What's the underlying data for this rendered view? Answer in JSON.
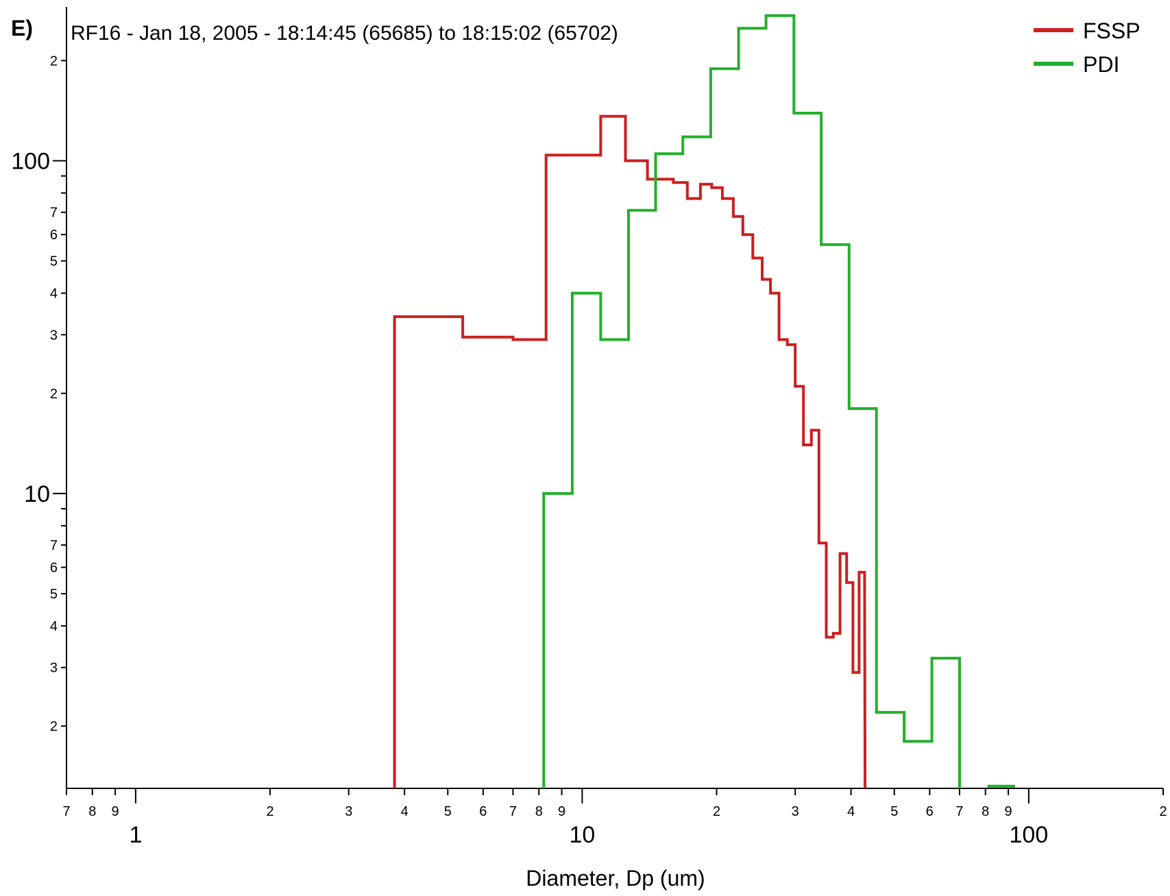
{
  "chart_data": {
    "type": "line",
    "step": true,
    "panel_label": "E)",
    "title": "RF16 - Jan 18, 2005 - 18:14:45 (65685) to 18:15:02 (65702)",
    "xlabel": "Diameter, Dp (um)",
    "ylabel": "",
    "x_scale": "log",
    "y_scale": "log",
    "xlim": [
      0.7,
      200
    ],
    "ylim": [
      1.3,
      290
    ],
    "x_major_ticks": [
      {
        "value": 1,
        "label": "1"
      },
      {
        "value": 10,
        "label": "10"
      },
      {
        "value": 100,
        "label": "100"
      }
    ],
    "x_minor_ticks": [
      {
        "value": 0.7,
        "label": "7"
      },
      {
        "value": 0.8,
        "label": "8"
      },
      {
        "value": 0.9,
        "label": "9"
      },
      {
        "value": 2,
        "label": "2"
      },
      {
        "value": 3,
        "label": "3"
      },
      {
        "value": 4,
        "label": "4"
      },
      {
        "value": 5,
        "label": "5"
      },
      {
        "value": 6,
        "label": "6"
      },
      {
        "value": 7,
        "label": "7"
      },
      {
        "value": 8,
        "label": "8"
      },
      {
        "value": 9,
        "label": "9"
      },
      {
        "value": 20,
        "label": "2"
      },
      {
        "value": 30,
        "label": "3"
      },
      {
        "value": 40,
        "label": "4"
      },
      {
        "value": 50,
        "label": "5"
      },
      {
        "value": 60,
        "label": "6"
      },
      {
        "value": 70,
        "label": "7"
      },
      {
        "value": 80,
        "label": "8"
      },
      {
        "value": 90,
        "label": "9"
      },
      {
        "value": 200,
        "label": "2"
      }
    ],
    "y_major_ticks": [
      {
        "value": 10,
        "label": "10"
      },
      {
        "value": 100,
        "label": "100"
      }
    ],
    "y_minor_ticks": [
      {
        "value": 2,
        "label": "2"
      },
      {
        "value": 3,
        "label": "3"
      },
      {
        "value": 4,
        "label": "4"
      },
      {
        "value": 5,
        "label": "5"
      },
      {
        "value": 6,
        "label": "6"
      },
      {
        "value": 7,
        "label": "7"
      },
      {
        "value": 8,
        "label": ""
      },
      {
        "value": 9,
        "label": ""
      },
      {
        "value": 20,
        "label": "2"
      },
      {
        "value": 30,
        "label": "3"
      },
      {
        "value": 40,
        "label": "4"
      },
      {
        "value": 50,
        "label": "5"
      },
      {
        "value": 60,
        "label": "6"
      },
      {
        "value": 70,
        "label": "7"
      },
      {
        "value": 80,
        "label": ""
      },
      {
        "value": 90,
        "label": ""
      },
      {
        "value": 200,
        "label": "2"
      }
    ],
    "grid": false,
    "legend_position": "top-right",
    "series": [
      {
        "name": "FSSP",
        "color": "#cc1f1f",
        "bins": [
          {
            "x0": 3.8,
            "x1": 5.4,
            "y": 34
          },
          {
            "x0": 5.4,
            "x1": 7.0,
            "y": 29.5
          },
          {
            "x0": 7.0,
            "x1": 8.3,
            "y": 29
          },
          {
            "x0": 8.3,
            "x1": 9.6,
            "y": 104
          },
          {
            "x0": 9.6,
            "x1": 11.0,
            "y": 104
          },
          {
            "x0": 11.0,
            "x1": 12.5,
            "y": 136
          },
          {
            "x0": 12.5,
            "x1": 14.0,
            "y": 100
          },
          {
            "x0": 14.0,
            "x1": 16.0,
            "y": 88
          },
          {
            "x0": 16.0,
            "x1": 17.2,
            "y": 86
          },
          {
            "x0": 17.2,
            "x1": 18.4,
            "y": 77
          },
          {
            "x0": 18.4,
            "x1": 19.5,
            "y": 85
          },
          {
            "x0": 19.5,
            "x1": 20.6,
            "y": 83
          },
          {
            "x0": 20.6,
            "x1": 21.8,
            "y": 77
          },
          {
            "x0": 21.8,
            "x1": 22.9,
            "y": 68
          },
          {
            "x0": 22.9,
            "x1": 24.1,
            "y": 60
          },
          {
            "x0": 24.1,
            "x1": 25.3,
            "y": 51
          },
          {
            "x0": 25.3,
            "x1": 26.4,
            "y": 44
          },
          {
            "x0": 26.4,
            "x1": 27.6,
            "y": 40
          },
          {
            "x0": 27.6,
            "x1": 28.8,
            "y": 29
          },
          {
            "x0": 28.8,
            "x1": 30.0,
            "y": 28
          },
          {
            "x0": 30.0,
            "x1": 31.3,
            "y": 21
          },
          {
            "x0": 31.3,
            "x1": 32.6,
            "y": 14
          },
          {
            "x0": 32.6,
            "x1": 33.9,
            "y": 15.5
          },
          {
            "x0": 33.9,
            "x1": 35.2,
            "y": 7.1
          },
          {
            "x0": 35.2,
            "x1": 36.5,
            "y": 3.7
          },
          {
            "x0": 36.5,
            "x1": 37.8,
            "y": 3.8
          },
          {
            "x0": 37.8,
            "x1": 39.1,
            "y": 6.6
          },
          {
            "x0": 39.1,
            "x1": 40.4,
            "y": 5.4
          },
          {
            "x0": 40.4,
            "x1": 41.7,
            "y": 2.9
          },
          {
            "x0": 41.7,
            "x1": 42.9,
            "y": 5.8
          }
        ],
        "end_x": 43.0
      },
      {
        "name": "PDI",
        "color": "#22b02a",
        "bins": [
          {
            "x0": 8.2,
            "x1": 9.5,
            "y": 10
          },
          {
            "x0": 9.5,
            "x1": 11.0,
            "y": 40
          },
          {
            "x0": 11.0,
            "x1": 12.7,
            "y": 29
          },
          {
            "x0": 12.7,
            "x1": 14.6,
            "y": 71
          },
          {
            "x0": 14.6,
            "x1": 16.8,
            "y": 105
          },
          {
            "x0": 16.8,
            "x1": 19.4,
            "y": 118
          },
          {
            "x0": 19.4,
            "x1": 22.4,
            "y": 189
          },
          {
            "x0": 22.4,
            "x1": 25.8,
            "y": 250
          },
          {
            "x0": 25.8,
            "x1": 29.8,
            "y": 273
          },
          {
            "x0": 29.8,
            "x1": 34.3,
            "y": 139
          },
          {
            "x0": 34.3,
            "x1": 39.6,
            "y": 56
          },
          {
            "x0": 39.6,
            "x1": 45.6,
            "y": 18
          },
          {
            "x0": 45.6,
            "x1": 52.6,
            "y": 2.2
          },
          {
            "x0": 52.6,
            "x1": 60.7,
            "y": 1.8
          },
          {
            "x0": 60.7,
            "x1": 70.0,
            "y": 3.2
          }
        ],
        "end_x": 70.0,
        "extra_segments": [
          {
            "x0": 80.8,
            "x1": 93.2,
            "y": 1.32
          }
        ]
      }
    ]
  }
}
